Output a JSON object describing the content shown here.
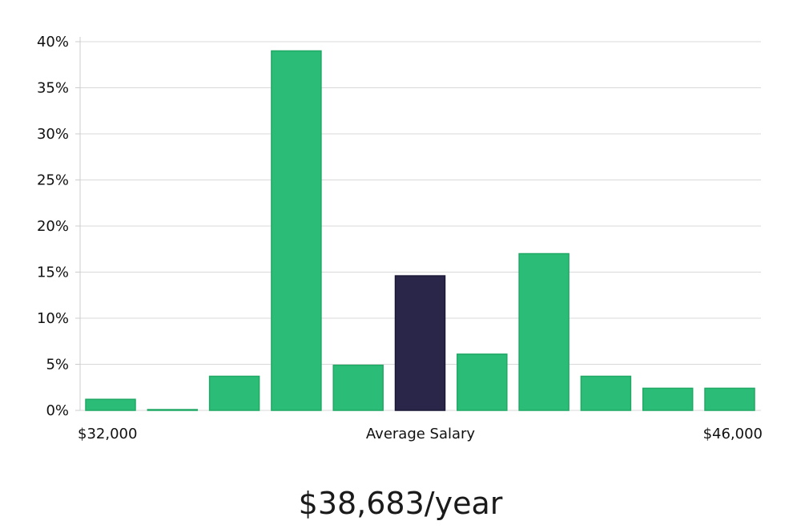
{
  "chart_data": {
    "type": "bar",
    "xlabel": "Average Salary",
    "x_range_labels": [
      "$32,000",
      "$46,000"
    ],
    "y_tick_labels": [
      "0%",
      "5%",
      "10%",
      "15%",
      "20%",
      "25%",
      "30%",
      "35%",
      "40%"
    ],
    "ylim": [
      0,
      40
    ],
    "grid": true,
    "values": [
      1.2,
      0.05,
      3.7,
      39.0,
      4.9,
      14.6,
      6.1,
      17.0,
      3.7,
      2.4,
      2.4
    ],
    "highlight_index": 5,
    "colors": {
      "bar": "#2bbd77",
      "bar_border": "#20a865",
      "highlight": "#29264a",
      "highlight_border": "#1a1836",
      "grid": "#d9d9d9",
      "axis": "#cccccc"
    }
  },
  "salary_value": "$38,683/year"
}
